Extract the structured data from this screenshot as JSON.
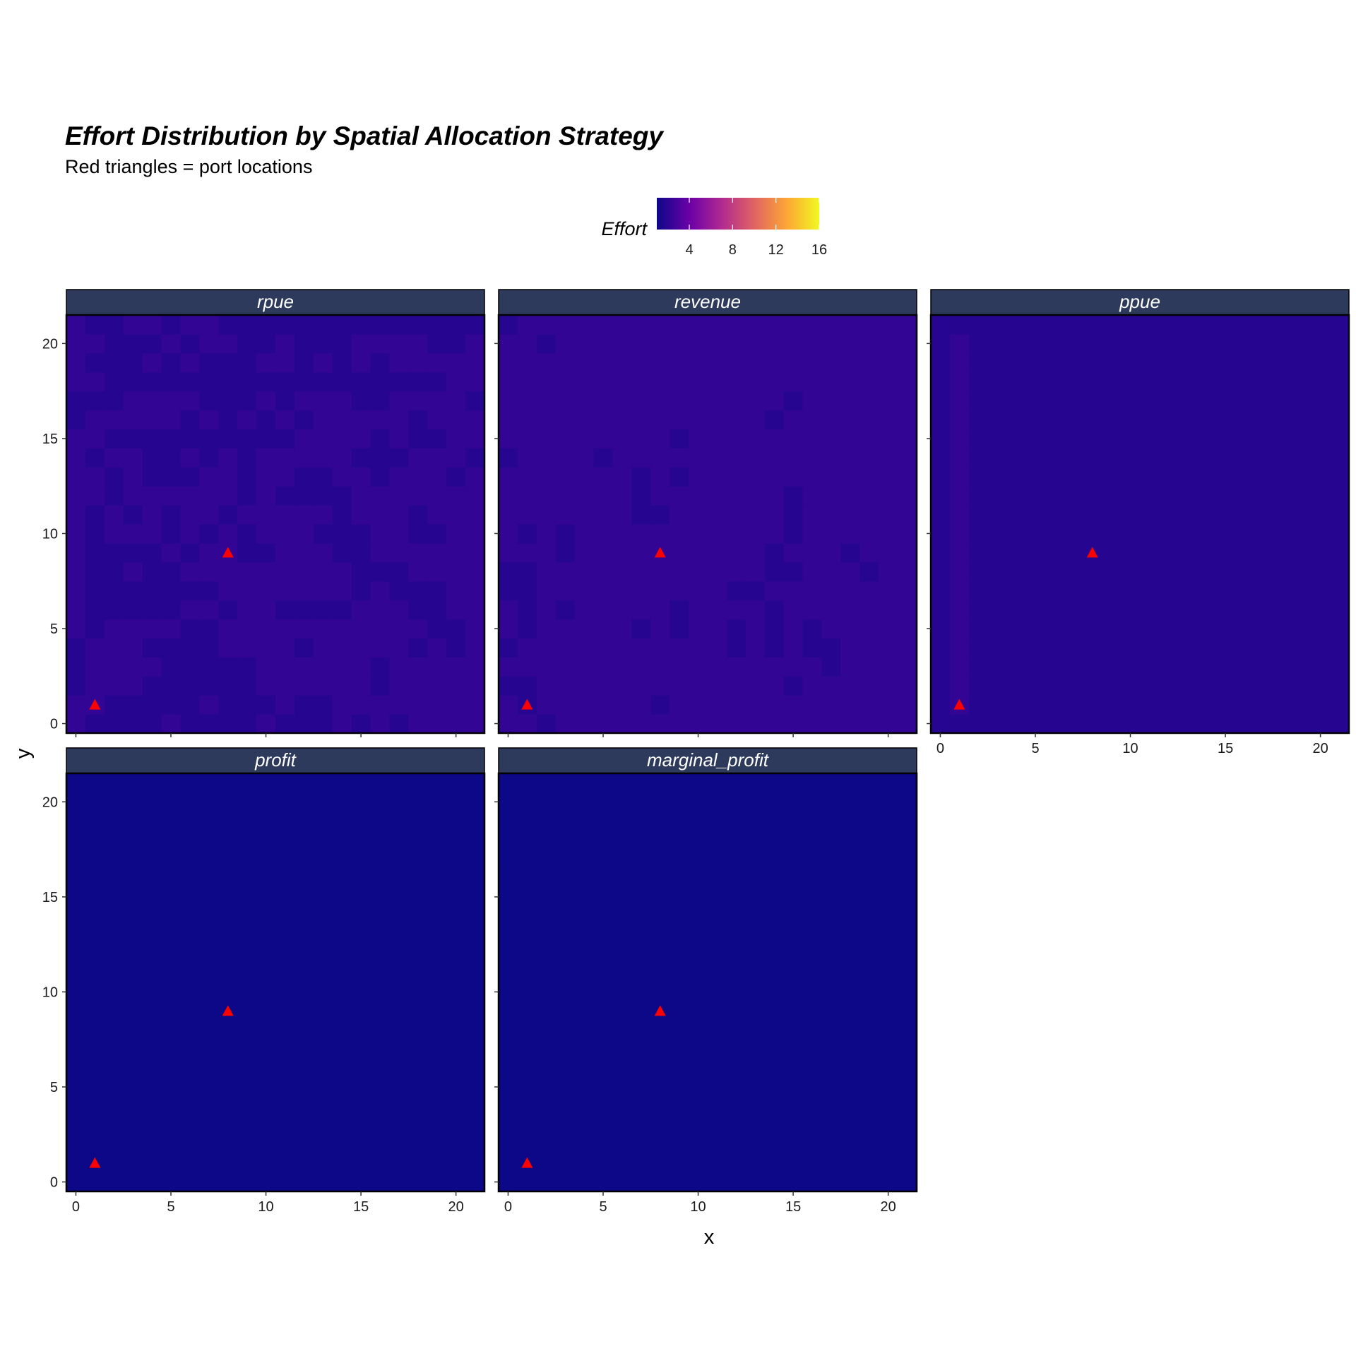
{
  "chart_data": {
    "type": "heatmap",
    "title": "Effort Distribution by Spatial Allocation Strategy",
    "subtitle": "Red triangles = port locations",
    "xlabel": "x",
    "ylabel": "y",
    "xlim": [
      -0.5,
      21.5
    ],
    "ylim": [
      -0.5,
      21.5
    ],
    "x_ticks": [
      0,
      5,
      10,
      15,
      20
    ],
    "y_ticks": [
      0,
      5,
      10,
      15,
      20
    ],
    "grid": true,
    "colorscale": "plasma",
    "legend": {
      "title": "Effort",
      "position": "top",
      "min": 1,
      "max": 16,
      "ticks": [
        4,
        8,
        12,
        16
      ]
    },
    "port_locations": [
      {
        "x": 1,
        "y": 1
      },
      {
        "x": 8,
        "y": 9
      }
    ],
    "port_color": "#ff0000",
    "panels": [
      {
        "name": "rpue",
        "grid_z": [
          "3222232222322232323333",
          "3322222322232233333333",
          "2333222222333333233333",
          "2333322222333333233333",
          "2333222233332333332323",
          "3233332233333333333223",
          "3222223323322223332233",
          "3222222233333332322233",
          "3223223333333332223333",
          "3222232332233322333333",
          "3233323232333222332233",
          "3232323323333323332333",
          "3323333332322223333333",
          "3323222332332233233323",
          "3233223232333332223332",
          "3322222222223333232233",
          "2333332323232333332333",
          "2223333222323332233332",
          "3322222222222222222233",
          "3222323222332323233333",
          "3322232332232223333223",
          "3223323322222222222222"
        ]
      },
      {
        "name": "revenue",
        "grid_z": [
          "3323333333333333333333",
          "3233333323333333333333",
          "2233333333333332333333",
          "3333333333333333323333",
          "2333333333332323223333",
          "3233333232332323233333",
          "3232333332333323333333",
          "2233333333332233333333",
          "2233333333333322333233",
          "3332333333333323332333",
          "3232333333333332333333",
          "3333333223333332333333",
          "3333333233333332333333",
          "3333333232333333333333",
          "2333323333333333333333",
          "3333333332333333333333",
          "3333333333333323333333",
          "3333333333333332333333",
          "3333333333333333333333",
          "3333333333333333333333",
          "3323333333333333333333",
          "2333333333333333333333"
        ]
      },
      {
        "name": "ppue",
        "grid_z": [
          "2222222222222222222222",
          "2322222222222222222222",
          "2322222222222222222222",
          "2322222222222222222222",
          "2322222222222222222222",
          "2322222222222222222222",
          "2322222222222222222222",
          "2322222222222222222222",
          "2322222222222222222222",
          "2322222222222222222222",
          "2322222222222222222222",
          "2322222222222222222222",
          "2322222222222222222222",
          "2322222222222222222222",
          "2322222222222222222222",
          "2322222222222222222222",
          "2322222222222222222222",
          "2322222222222222222222",
          "2322222222222222222222",
          "2322222222222222222222",
          "2322222222222222222222",
          "2222222222222222222222"
        ]
      },
      {
        "name": "profit",
        "grid_z": [
          "0000000000000000000000",
          "0000000000000000000000",
          "0000000000000000000000",
          "0000000000000000000000",
          "0000000000000000000000",
          "0000000000000000000000",
          "0000000000000000000000",
          "0000000000000000000000",
          "0000000000000000000000",
          "0000000000000000000000",
          "0000000000000000000000",
          "0000000000000000000000",
          "0000000000000000000000",
          "0000000000000000000000",
          "0000000000000000000000",
          "0000000000000000000000",
          "0000000000000000000000",
          "0000000000000000000000",
          "0000000000000000000000",
          "0000000000000000000000",
          "0000000000000000000000",
          "0000000000000000000000"
        ]
      },
      {
        "name": "marginal_profit",
        "grid_z": [
          "0000000000000000000000",
          "0000000000000000000000",
          "0000000000000000000000",
          "0000000000000000000000",
          "0000000000000000000000",
          "0000000000000000000000",
          "0000000000000000000000",
          "0000000000000000000000",
          "0000000000000000000000",
          "0000000000000000000000",
          "0000000000000000000000",
          "0000000000000000000000",
          "0000000000000000000000",
          "0000000000000000000000",
          "0000000000000000000000",
          "0000000000000000000000",
          "0000000000000000000000",
          "0000000000000000000000",
          "0000000000000000000000",
          "0000000000000000000000",
          "0000000000000000000000",
          "0000000000000000000000"
        ]
      }
    ]
  }
}
